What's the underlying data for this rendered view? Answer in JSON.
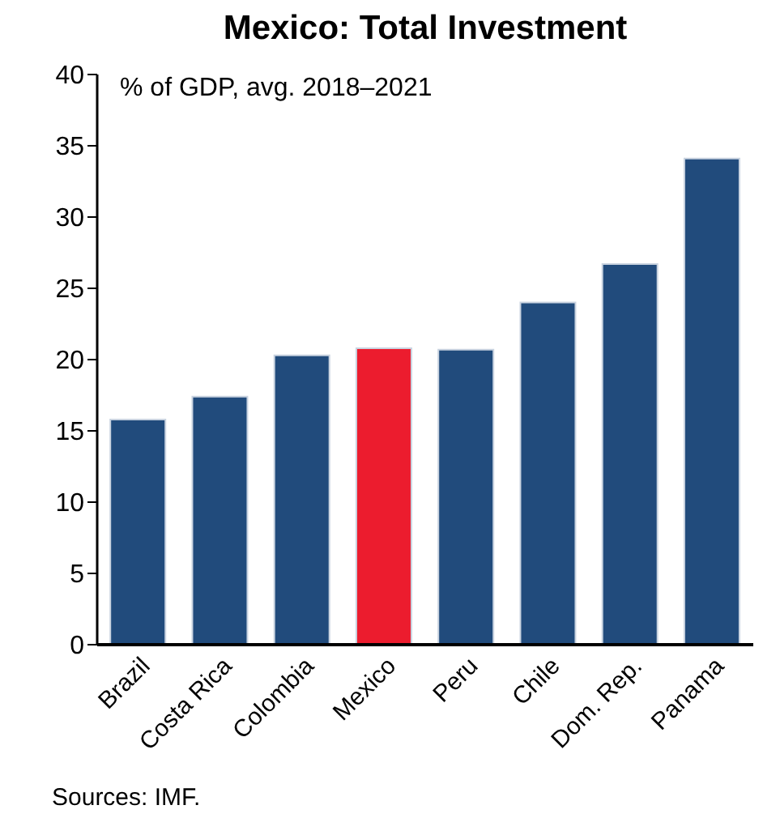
{
  "chart_data": {
    "type": "bar",
    "title": "Mexico: Total Investment",
    "subtitle": "% of GDP, avg. 2018–2021",
    "categories": [
      "Brazil",
      "Costa Rica",
      "Colombia",
      "Mexico",
      "Peru",
      "Chile",
      "Dom. Rep.",
      "Panama"
    ],
    "values": [
      15.8,
      17.4,
      20.3,
      20.8,
      20.7,
      24.0,
      26.7,
      34.1
    ],
    "colors": [
      "#214b7c",
      "#214b7c",
      "#214b7c",
      "#ec1c2e",
      "#214b7c",
      "#214b7c",
      "#214b7c",
      "#214b7c"
    ],
    "ylim": [
      0,
      40
    ],
    "yticks": [
      0,
      5,
      10,
      15,
      20,
      25,
      30,
      35,
      40
    ],
    "grid": false,
    "annotations": [
      "Sources: IMF."
    ]
  }
}
